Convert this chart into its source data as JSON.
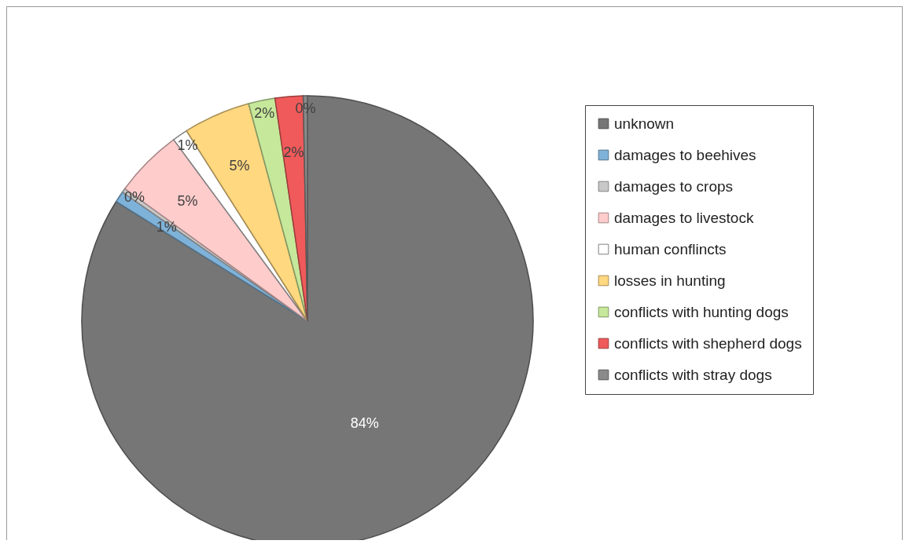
{
  "chart_data": {
    "type": "pie",
    "categories": [
      "unknown",
      "damages to beehives",
      "damages to crops",
      "damages to livestock",
      "human conflincts",
      "losses in hunting",
      "conflicts with hunting dogs",
      "conflicts with shepherd dogs",
      "conflicts with stray dogs"
    ],
    "values": [
      83.9,
      0.8,
      0.3,
      4.9,
      1.1,
      4.8,
      1.9,
      2.0,
      0.3
    ],
    "value_labels": [
      "84%",
      "1%",
      "0%",
      "5%",
      "1%",
      "5%",
      "2%",
      "2%",
      "0%"
    ],
    "colors": [
      "#767676",
      "#7fb2d9",
      "#c8c8c8",
      "#ffcccc",
      "#ffffff",
      "#ffd87f",
      "#c6e89a",
      "#f05a5a",
      "#8a8a8a"
    ],
    "legend": "right"
  }
}
